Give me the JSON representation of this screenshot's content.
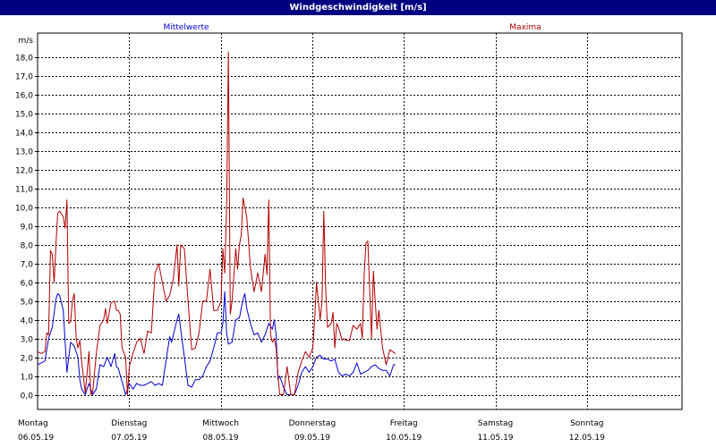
{
  "window": {
    "title": "Windgeschwindigkeit [m/s]"
  },
  "colors": {
    "mean": "#0000cc",
    "max": "#b00000",
    "title_bg": "#000080"
  },
  "chart_data": {
    "type": "line",
    "title": "Windgeschwindigkeit [m/s]",
    "ylabel": "m/s",
    "ylim": [
      -0.1,
      19.2
    ],
    "yticks": [
      "0,0",
      "1,0",
      "2,0",
      "3,0",
      "4,0",
      "5,0",
      "6,0",
      "7,0",
      "8,0",
      "9,0",
      "10,0",
      "11,0",
      "12,0",
      "13,0",
      "14,0",
      "15,0",
      "16,0",
      "17,0",
      "18,0"
    ],
    "days": [
      {
        "day": "Montag",
        "date": "06.05.19"
      },
      {
        "day": "Dienstag",
        "date": "07.05.19"
      },
      {
        "day": "Mittwoch",
        "date": "08.05.19"
      },
      {
        "day": "Donnerstag",
        "date": "09.05.19"
      },
      {
        "day": "Freitag",
        "date": "10.05.19"
      },
      {
        "day": "Samstag",
        "date": "11.05.19"
      },
      {
        "day": "Sonntag",
        "date": "12.05.19"
      }
    ],
    "grid": true,
    "series": [
      {
        "name": "Mittelwerte",
        "color": "#0000cc",
        "points": [
          [
            0.0,
            1.6
          ],
          [
            0.1,
            1.7
          ],
          [
            0.2,
            1.8
          ],
          [
            0.3,
            3.0
          ],
          [
            0.4,
            3.6
          ],
          [
            0.5,
            5.1
          ],
          [
            0.55,
            5.4
          ],
          [
            0.6,
            5.3
          ],
          [
            0.7,
            4.5
          ],
          [
            0.75,
            2.8
          ],
          [
            0.8,
            1.2
          ],
          [
            0.9,
            2.8
          ],
          [
            1.0,
            2.6
          ],
          [
            1.1,
            2.0
          ],
          [
            1.15,
            0.8
          ],
          [
            1.2,
            0.3
          ],
          [
            1.3,
            0.0
          ],
          [
            1.4,
            0.6
          ],
          [
            1.5,
            0.0
          ],
          [
            1.6,
            0.3
          ],
          [
            1.7,
            1.6
          ],
          [
            1.8,
            1.5
          ],
          [
            1.9,
            2.0
          ],
          [
            2.0,
            1.5
          ],
          [
            2.1,
            2.2
          ],
          [
            2.15,
            1.5
          ],
          [
            2.2,
            1.4
          ],
          [
            2.3,
            0.7
          ],
          [
            2.4,
            0.0
          ],
          [
            2.5,
            0.6
          ],
          [
            2.6,
            0.3
          ],
          [
            2.7,
            0.6
          ],
          [
            2.8,
            0.5
          ],
          [
            2.9,
            0.5
          ],
          [
            3.0,
            0.6
          ],
          [
            3.1,
            0.7
          ],
          [
            3.2,
            0.5
          ],
          [
            3.3,
            0.6
          ],
          [
            3.4,
            0.5
          ],
          [
            3.5,
            1.8
          ],
          [
            3.6,
            3.1
          ],
          [
            3.65,
            2.8
          ],
          [
            3.7,
            3.2
          ],
          [
            3.8,
            4.0
          ],
          [
            3.85,
            4.3
          ],
          [
            3.9,
            3.5
          ],
          [
            4.0,
            2.0
          ],
          [
            4.1,
            0.5
          ],
          [
            4.2,
            0.4
          ],
          [
            4.3,
            0.8
          ],
          [
            4.4,
            0.8
          ],
          [
            4.5,
            1.0
          ],
          [
            4.6,
            1.5
          ],
          [
            4.7,
            1.8
          ],
          [
            4.8,
            2.5
          ],
          [
            4.9,
            3.3
          ],
          [
            5.0,
            3.3
          ],
          [
            5.05,
            3.8
          ],
          [
            5.1,
            5.5
          ],
          [
            5.15,
            3.3
          ],
          [
            5.2,
            2.7
          ],
          [
            5.3,
            2.8
          ],
          [
            5.4,
            4.0
          ],
          [
            5.5,
            4.1
          ],
          [
            5.6,
            5.1
          ],
          [
            5.65,
            5.4
          ],
          [
            5.7,
            4.6
          ],
          [
            5.8,
            3.8
          ],
          [
            5.9,
            3.2
          ],
          [
            6.0,
            3.3
          ],
          [
            6.1,
            2.8
          ],
          [
            6.2,
            3.2
          ],
          [
            6.3,
            3.8
          ],
          [
            6.4,
            3.5
          ],
          [
            6.45,
            4.0
          ],
          [
            6.5,
            3.2
          ],
          [
            6.55,
            0.8
          ],
          [
            6.6,
            1.0
          ],
          [
            6.7,
            0.4
          ],
          [
            6.8,
            0.0
          ],
          [
            6.9,
            0.0
          ],
          [
            7.0,
            0.0
          ],
          [
            7.1,
            0.5
          ],
          [
            7.2,
            1.2
          ],
          [
            7.3,
            1.5
          ],
          [
            7.4,
            1.2
          ],
          [
            7.5,
            1.5
          ],
          [
            7.6,
            2.0
          ],
          [
            7.7,
            2.1
          ],
          [
            7.8,
            1.9
          ],
          [
            7.9,
            1.9
          ],
          [
            8.0,
            1.8
          ],
          [
            8.1,
            1.9
          ],
          [
            8.2,
            1.2
          ],
          [
            8.3,
            1.0
          ],
          [
            8.4,
            1.1
          ],
          [
            8.5,
            1.0
          ],
          [
            8.6,
            1.2
          ],
          [
            8.7,
            1.7
          ],
          [
            8.8,
            1.1
          ],
          [
            8.9,
            1.2
          ],
          [
            9.0,
            1.3
          ],
          [
            9.1,
            1.5
          ],
          [
            9.2,
            1.6
          ],
          [
            9.3,
            1.4
          ],
          [
            9.4,
            1.3
          ],
          [
            9.5,
            1.3
          ],
          [
            9.6,
            1.0
          ],
          [
            9.7,
            1.6
          ],
          [
            9.75,
            1.6
          ]
        ]
      },
      {
        "name": "Maxima",
        "color": "#b00000",
        "points": [
          [
            0.0,
            2.3
          ],
          [
            0.1,
            2.2
          ],
          [
            0.2,
            2.3
          ],
          [
            0.25,
            3.3
          ],
          [
            0.3,
            3.2
          ],
          [
            0.35,
            7.7
          ],
          [
            0.4,
            7.5
          ],
          [
            0.45,
            6.0
          ],
          [
            0.5,
            8.0
          ],
          [
            0.55,
            9.7
          ],
          [
            0.6,
            9.8
          ],
          [
            0.7,
            9.5
          ],
          [
            0.75,
            8.9
          ],
          [
            0.8,
            10.4
          ],
          [
            0.85,
            3.8
          ],
          [
            0.9,
            3.9
          ],
          [
            0.95,
            5.0
          ],
          [
            1.0,
            5.4
          ],
          [
            1.05,
            3.0
          ],
          [
            1.1,
            2.5
          ],
          [
            1.15,
            2.9
          ],
          [
            1.2,
            1.8
          ],
          [
            1.3,
            0.1
          ],
          [
            1.4,
            2.3
          ],
          [
            1.45,
            0.0
          ],
          [
            1.5,
            0.1
          ],
          [
            1.6,
            2.2
          ],
          [
            1.7,
            3.7
          ],
          [
            1.8,
            4.0
          ],
          [
            1.85,
            4.6
          ],
          [
            1.9,
            3.8
          ],
          [
            2.0,
            4.9
          ],
          [
            2.1,
            5.0
          ],
          [
            2.15,
            4.5
          ],
          [
            2.2,
            4.5
          ],
          [
            2.25,
            4.3
          ],
          [
            2.3,
            2.5
          ],
          [
            2.4,
            2.0
          ],
          [
            2.45,
            0.0
          ],
          [
            2.5,
            1.5
          ],
          [
            2.6,
            2.2
          ],
          [
            2.7,
            2.8
          ],
          [
            2.8,
            3.0
          ],
          [
            2.9,
            2.2
          ],
          [
            3.0,
            3.4
          ],
          [
            3.1,
            3.3
          ],
          [
            3.2,
            6.5
          ],
          [
            3.3,
            7.0
          ],
          [
            3.4,
            6.0
          ],
          [
            3.5,
            5.0
          ],
          [
            3.6,
            5.3
          ],
          [
            3.7,
            6.2
          ],
          [
            3.8,
            8.0
          ],
          [
            3.85,
            5.8
          ],
          [
            3.9,
            8.0
          ],
          [
            4.0,
            7.8
          ],
          [
            4.1,
            5.0
          ],
          [
            4.2,
            2.4
          ],
          [
            4.3,
            2.5
          ],
          [
            4.4,
            3.3
          ],
          [
            4.5,
            5.0
          ],
          [
            4.6,
            5.0
          ],
          [
            4.7,
            6.7
          ],
          [
            4.8,
            4.5
          ],
          [
            4.9,
            4.5
          ],
          [
            5.0,
            5.0
          ],
          [
            5.05,
            7.8
          ],
          [
            5.1,
            6.5
          ],
          [
            5.15,
            10.0
          ],
          [
            5.2,
            18.3
          ],
          [
            5.25,
            4.3
          ],
          [
            5.3,
            5.0
          ],
          [
            5.4,
            7.8
          ],
          [
            5.45,
            6.7
          ],
          [
            5.5,
            8.0
          ],
          [
            5.55,
            8.5
          ],
          [
            5.6,
            10.5
          ],
          [
            5.7,
            9.5
          ],
          [
            5.8,
            6.8
          ],
          [
            5.9,
            5.5
          ],
          [
            6.0,
            6.5
          ],
          [
            6.1,
            5.5
          ],
          [
            6.2,
            7.5
          ],
          [
            6.25,
            6.4
          ],
          [
            6.3,
            10.4
          ],
          [
            6.35,
            3.2
          ],
          [
            6.4,
            2.8
          ],
          [
            6.45,
            3.0
          ],
          [
            6.5,
            2.5
          ],
          [
            6.55,
            1.0
          ],
          [
            6.6,
            0.0
          ],
          [
            6.7,
            0.0
          ],
          [
            6.8,
            1.5
          ],
          [
            6.9,
            0.0
          ],
          [
            7.0,
            0.0
          ],
          [
            7.1,
            1.2
          ],
          [
            7.2,
            1.8
          ],
          [
            7.3,
            2.3
          ],
          [
            7.4,
            2.0
          ],
          [
            7.5,
            2.5
          ],
          [
            7.55,
            4.0
          ],
          [
            7.6,
            6.0
          ],
          [
            7.7,
            4.0
          ],
          [
            7.75,
            5.0
          ],
          [
            7.8,
            9.8
          ],
          [
            7.85,
            5.8
          ],
          [
            7.9,
            3.6
          ],
          [
            8.0,
            3.8
          ],
          [
            8.05,
            4.4
          ],
          [
            8.1,
            2.5
          ],
          [
            8.15,
            3.8
          ],
          [
            8.2,
            3.6
          ],
          [
            8.3,
            2.9
          ],
          [
            8.35,
            3.0
          ],
          [
            8.4,
            2.9
          ],
          [
            8.5,
            2.9
          ],
          [
            8.6,
            3.7
          ],
          [
            8.7,
            3.5
          ],
          [
            8.8,
            3.8
          ],
          [
            8.85,
            3.0
          ],
          [
            8.9,
            6.4
          ],
          [
            8.95,
            8.1
          ],
          [
            9.0,
            8.2
          ],
          [
            9.1,
            3.0
          ],
          [
            9.15,
            6.6
          ],
          [
            9.2,
            5.0
          ],
          [
            9.25,
            3.5
          ],
          [
            9.3,
            4.5
          ],
          [
            9.4,
            2.5
          ],
          [
            9.5,
            1.6
          ],
          [
            9.6,
            2.4
          ],
          [
            9.75,
            2.2
          ]
        ]
      }
    ]
  }
}
